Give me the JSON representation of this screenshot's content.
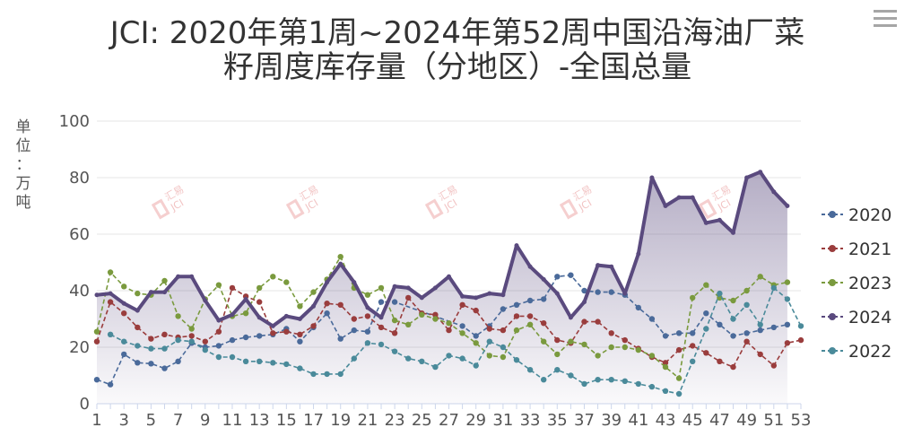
{
  "title_lines": [
    "JCI: 2020年第1周~2024年第52周中国沿海油厂菜",
    "籽周度库存量（分地区）-全国总量"
  ],
  "ylabel_chars": [
    "单",
    "位",
    "：",
    "万",
    "吨"
  ],
  "menu_icon": "hamburger-menu-icon",
  "watermark": {
    "brand_cn": "汇易",
    "brand_en": "JCI"
  },
  "chart_data": {
    "type": "line",
    "x": [
      1,
      2,
      3,
      4,
      5,
      6,
      7,
      8,
      9,
      10,
      11,
      12,
      13,
      14,
      15,
      16,
      17,
      18,
      19,
      20,
      21,
      22,
      23,
      24,
      25,
      26,
      27,
      28,
      29,
      30,
      31,
      32,
      33,
      34,
      35,
      36,
      37,
      38,
      39,
      40,
      41,
      42,
      43,
      44,
      45,
      46,
      47,
      48,
      49,
      50,
      51,
      52,
      53
    ],
    "xticks": [
      1,
      3,
      5,
      7,
      9,
      11,
      13,
      15,
      17,
      19,
      21,
      23,
      25,
      27,
      29,
      31,
      33,
      35,
      37,
      39,
      41,
      43,
      45,
      47,
      49,
      51,
      53
    ],
    "ylim": [
      0,
      100
    ],
    "yticks": [
      0,
      20,
      40,
      60,
      80,
      100
    ],
    "grid": true,
    "legend_position": "right",
    "series": [
      {
        "name": "2020",
        "color": "#4a6a9a",
        "style": "dashed",
        "values": [
          8.5,
          6.8,
          17.5,
          14.5,
          14.2,
          12.5,
          15.0,
          21.5,
          20.0,
          20.5,
          22.5,
          23.5,
          24.0,
          24.5,
          26.5,
          22.0,
          27.0,
          32.0,
          23.0,
          26.0,
          25.5,
          36.0,
          36.0,
          null,
          null,
          null,
          null,
          27.5,
          24.0,
          27.5,
          33.5,
          35.0,
          36.5,
          37.0,
          45.0,
          45.5,
          40.0,
          39.5,
          39.5,
          38.5,
          34.0,
          30.0,
          24.0,
          25.0,
          25.0,
          32.0,
          28.0,
          24.0,
          25.0,
          26.0,
          27.0,
          28.0,
          null
        ]
      },
      {
        "name": "2021",
        "color": "#9a3d3d",
        "style": "dashed",
        "values": [
          22.0,
          36.0,
          32.0,
          27.0,
          23.0,
          24.5,
          23.5,
          24.0,
          22.0,
          25.5,
          41.0,
          38.0,
          36.0,
          25.0,
          25.5,
          24.5,
          27.5,
          35.5,
          35.0,
          30.0,
          31.0,
          27.0,
          25.0,
          37.5,
          32.0,
          31.5,
          26.0,
          35.0,
          33.0,
          26.5,
          26.0,
          31.0,
          31.0,
          28.5,
          22.5,
          21.5,
          29.0,
          29.0,
          25.0,
          22.5,
          19.5,
          16.5,
          14.5,
          19.0,
          20.5,
          18.0,
          15.0,
          13.0,
          22.0,
          17.5,
          13.5,
          21.5,
          22.5
        ]
      },
      {
        "name": "2023",
        "color": "#7a9a3e",
        "style": "dashed",
        "values": [
          25.5,
          46.5,
          41.5,
          39.0,
          38.5,
          43.5,
          31.0,
          26.5,
          37.0,
          42.0,
          31.0,
          32.0,
          41.0,
          45.0,
          43.0,
          34.5,
          39.5,
          44.0,
          52.0,
          41.0,
          38.5,
          41.0,
          29.5,
          28.0,
          31.5,
          30.0,
          28.5,
          25.0,
          21.5,
          17.0,
          16.5,
          26.0,
          28.0,
          22.0,
          17.5,
          22.0,
          21.0,
          17.0,
          20.0,
          20.0,
          19.0,
          17.0,
          13.0,
          9.0,
          37.5,
          42.0,
          37.5,
          36.5,
          40.0,
          45.0,
          42.0,
          43.0,
          null
        ]
      },
      {
        "name": "2024",
        "color": "#5a4a7e",
        "style": "solid",
        "values": [
          38.5,
          39.0,
          35.5,
          33.0,
          39.5,
          39.5,
          45.0,
          45.0,
          36.5,
          29.5,
          31.5,
          37.0,
          30.5,
          27.5,
          31.0,
          30.0,
          34.5,
          43.0,
          49.5,
          43.0,
          34.0,
          30.5,
          41.5,
          41.0,
          37.5,
          41.0,
          45.0,
          38.0,
          37.5,
          39.0,
          38.5,
          56.0,
          48.5,
          44.0,
          39.0,
          30.5,
          36.0,
          49.0,
          48.5,
          39.0,
          53.0,
          80.0,
          70.0,
          73.0,
          73.0,
          64.0,
          65.0,
          60.5,
          80.0,
          82.0,
          75.0,
          70.0,
          null
        ]
      },
      {
        "name": "2022",
        "color": "#4a8a9a",
        "style": "dashed",
        "values": [
          null,
          24.5,
          22.0,
          20.5,
          19.5,
          19.5,
          22.5,
          22.0,
          19.0,
          16.5,
          16.5,
          15.0,
          15.0,
          14.5,
          14.0,
          12.5,
          10.5,
          10.5,
          10.5,
          16.0,
          21.5,
          21.0,
          18.5,
          16.0,
          15.0,
          13.0,
          17.0,
          16.0,
          13.5,
          22.0,
          20.0,
          15.5,
          12.0,
          8.5,
          12.0,
          10.0,
          7.0,
          8.5,
          8.5,
          8.0,
          7.0,
          6.0,
          4.5,
          3.5,
          15.0,
          26.5,
          39.0,
          30.0,
          35.0,
          28.0,
          41.0,
          37.0,
          27.5
        ]
      }
    ]
  }
}
